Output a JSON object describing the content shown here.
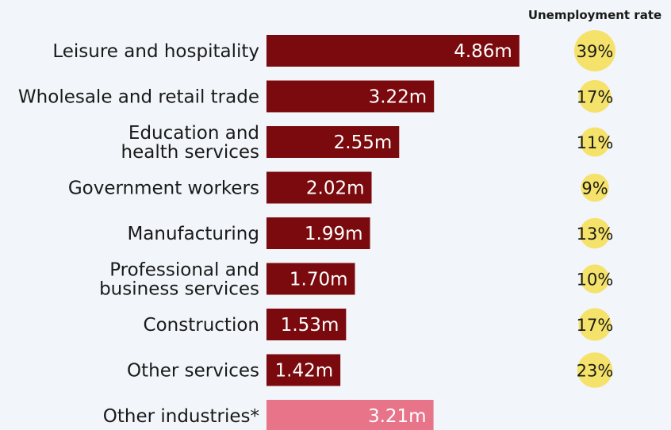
{
  "chart_data": {
    "type": "bar",
    "orientation": "horizontal",
    "rate_header": "Unemployment rate",
    "colors": {
      "bar": "#7a0a0d",
      "bar_highlight": "#e8748a",
      "bubble": "#f5e26a",
      "background": "#f2f5f9"
    },
    "categories": [
      [
        "Leisure and hospitality"
      ],
      [
        "Wholesale and retail trade"
      ],
      [
        "Education and",
        "health services"
      ],
      [
        "Government workers"
      ],
      [
        "Manufacturing"
      ],
      [
        "Professional and",
        "business services"
      ],
      [
        "Construction"
      ],
      [
        "Other services"
      ],
      [
        "Other industries*"
      ]
    ],
    "series": [
      {
        "values": [
          4.86,
          3.22,
          2.55,
          2.02,
          1.99,
          1.7,
          1.53,
          1.42,
          3.21
        ],
        "labels": [
          "4.86m",
          "3.22m",
          "2.55m",
          "2.02m",
          "1.99m",
          "1.70m",
          "1.53m",
          "1.42m",
          "3.21m"
        ]
      }
    ],
    "unemployment_rate": {
      "values": [
        39,
        17,
        11,
        9,
        13,
        10,
        17,
        23,
        null
      ],
      "labels": [
        "39%",
        "17%",
        "11%",
        "9%",
        "13%",
        "10%",
        "17%",
        "23%",
        ""
      ]
    },
    "highlight_index": 8
  }
}
